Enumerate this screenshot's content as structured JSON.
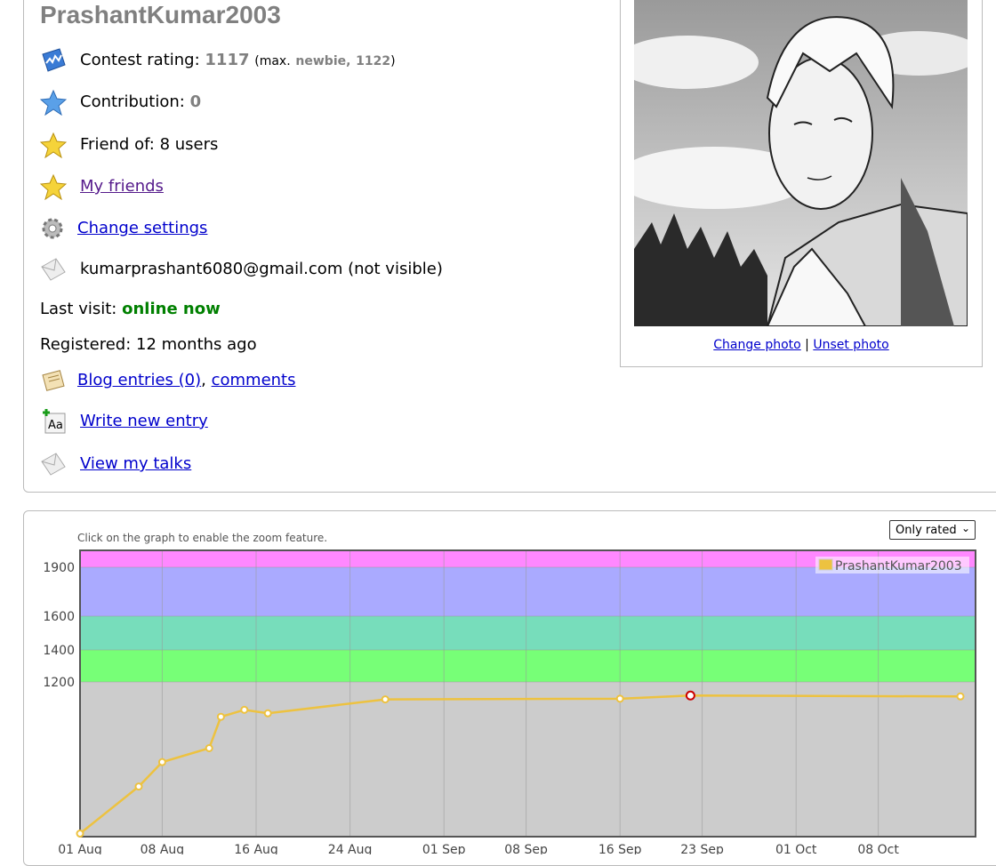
{
  "profile": {
    "username": "PrashantKumar2003",
    "contest_rating_label": "Contest rating:",
    "contest_rating_value": "1117",
    "max_prefix": "(max.",
    "max_rank": "newbie,",
    "max_value": "1122",
    "max_suffix": ")",
    "contribution_label": "Contribution:",
    "contribution_value": "0",
    "friend_of": "Friend of: 8 users",
    "my_friends": "My friends",
    "change_settings": "Change settings",
    "email": "kumarprashant6080@gmail.com (not visible)",
    "last_visit_label": "Last visit:",
    "last_visit_value": "online now",
    "registered": "Registered: 12 months ago",
    "blog_entries": "Blog entries (0)",
    "comma": ",",
    "comments": "comments",
    "write_new_entry": "Write new entry",
    "view_my_talks": "View my talks"
  },
  "photo": {
    "change_photo": "Change photo",
    "separator": "|",
    "unset_photo": "Unset photo"
  },
  "graph": {
    "hint": "Click on the graph to enable the zoom feature.",
    "filter_selected": "Only rated"
  },
  "colors": {
    "band_pink": "#ff88ff",
    "band_blue": "#aaaaff",
    "band_cyan": "#77ddbb",
    "band_green": "#77ff77",
    "band_gray": "#cccccc",
    "line": "#edc240",
    "highlight": "#cc0000"
  },
  "chart_data": {
    "type": "line",
    "title": "",
    "xlabel": "",
    "ylabel": "",
    "x_ticks": [
      "01 Aug",
      "08 Aug",
      "16 Aug",
      "24 Aug",
      "01 Sep",
      "08 Sep",
      "16 Sep",
      "23 Sep",
      "01 Oct",
      "08 Oct"
    ],
    "y_ticks": [
      1200,
      1400,
      1600,
      1900
    ],
    "rank_bands": [
      1200,
      1400,
      1600,
      1900
    ],
    "grid": true,
    "legend": "top-right",
    "series": [
      {
        "name": "PrashantKumar2003",
        "x": [
          "2023-08-01",
          "2023-08-06",
          "2023-08-08",
          "2023-08-12",
          "2023-08-13",
          "2023-08-15",
          "2023-08-17",
          "2023-08-27",
          "2023-09-16",
          "2023-09-22",
          "2023-10-15"
        ],
        "y": [
          330,
          600,
          740,
          820,
          1000,
          1040,
          1020,
          1100,
          1104,
          1122,
          1117
        ],
        "highlight_index": 9
      }
    ]
  }
}
